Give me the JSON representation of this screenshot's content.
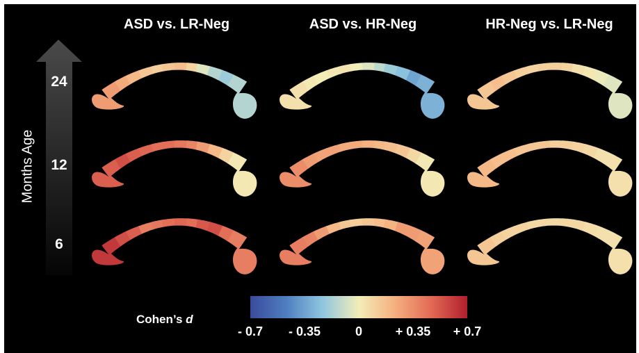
{
  "columns": [
    "ASD vs. LR-Neg",
    "ASD vs. HR-Neg",
    "HR-Neg vs. LR-Neg"
  ],
  "y_axis": {
    "label": "Months Age",
    "ages": [
      "24",
      "12",
      "6"
    ]
  },
  "colorbar": {
    "title_prefix": "Cohen’s ",
    "title_var": "d",
    "range": [
      -0.7,
      0.7
    ],
    "ticks": [
      "- 0.7",
      "- 0.35",
      "0",
      "+ 0.35",
      "+ 0.7"
    ],
    "colors": [
      "#3a4b9c",
      "#4f7fc0",
      "#8fc6df",
      "#f3edb8",
      "#f5b07f",
      "#e26a55",
      "#b01f2c"
    ]
  },
  "panels": [
    {
      "row": "24",
      "column": "ASD vs. LR-Neg",
      "segment_d": [
        0.3,
        0.25,
        0.2,
        0.15,
        0.12,
        0.15,
        0.18,
        0.1,
        -0.05,
        -0.15,
        -0.2,
        -0.15
      ]
    },
    {
      "row": "24",
      "column": "ASD vs. HR-Neg",
      "segment_d": [
        0.05,
        0.02,
        0.0,
        0.02,
        0.04,
        0.0,
        -0.05,
        -0.12,
        -0.2,
        -0.25,
        -0.35,
        -0.3
      ]
    },
    {
      "row": "24",
      "column": "HR-Neg vs. LR-Neg",
      "segment_d": [
        0.15,
        0.18,
        0.15,
        0.12,
        0.1,
        0.12,
        0.12,
        0.1,
        0.05,
        0.02,
        -0.02,
        -0.05
      ]
    },
    {
      "row": "12",
      "column": "ASD vs. LR-Neg",
      "segment_d": [
        0.5,
        0.55,
        0.5,
        0.48,
        0.45,
        0.45,
        0.42,
        0.38,
        0.3,
        0.2,
        0.1,
        0.02
      ]
    },
    {
      "row": "12",
      "column": "ASD vs. HR-Neg",
      "segment_d": [
        0.35,
        0.3,
        0.28,
        0.28,
        0.25,
        0.25,
        0.22,
        0.2,
        0.18,
        0.15,
        0.08,
        0.02
      ]
    },
    {
      "row": "12",
      "column": "HR-Neg vs. LR-Neg",
      "segment_d": [
        0.2,
        0.18,
        0.18,
        0.15,
        0.15,
        0.15,
        0.12,
        0.12,
        0.1,
        0.08,
        0.05,
        0.05
      ]
    },
    {
      "row": "6",
      "column": "ASD vs. LR-Neg",
      "segment_d": [
        0.62,
        0.55,
        0.5,
        0.4,
        0.42,
        0.45,
        0.48,
        0.45,
        0.52,
        0.55,
        0.45,
        0.4
      ]
    },
    {
      "row": "6",
      "column": "ASD vs. HR-Neg",
      "segment_d": [
        0.4,
        0.38,
        0.3,
        0.2,
        0.15,
        0.12,
        0.15,
        0.18,
        0.22,
        0.3,
        0.3,
        0.28
      ]
    },
    {
      "row": "6",
      "column": "HR-Neg vs. LR-Neg",
      "segment_d": [
        0.15,
        0.12,
        0.1,
        0.1,
        0.08,
        0.08,
        0.08,
        0.08,
        0.08,
        0.06,
        0.05,
        0.05
      ]
    }
  ]
}
